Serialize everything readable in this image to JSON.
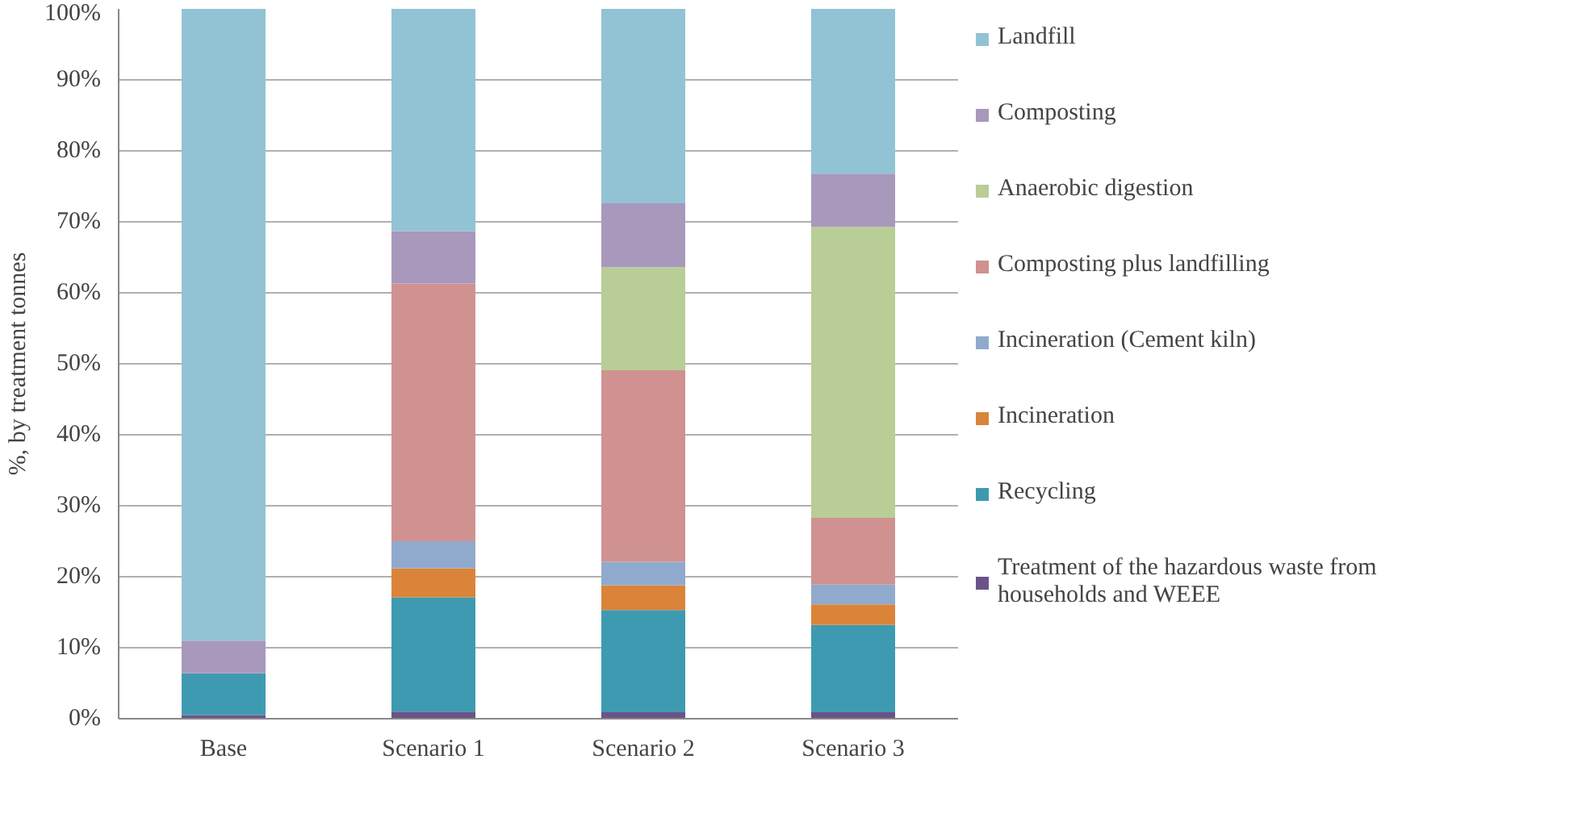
{
  "chart_data": {
    "type": "bar",
    "stacked": true,
    "ylabel": "%, by treatment tonnes",
    "categories": [
      "Base",
      "Scenario 1",
      "Scenario 2",
      "Scenario 3"
    ],
    "series": [
      {
        "name": "Treatment of the hazardous waste from households and WEEE",
        "color": "#6a5388",
        "values": [
          0.5,
          1.0,
          0.9,
          0.9
        ]
      },
      {
        "name": "Recycling",
        "color": "#3e9ab0",
        "values": [
          5.9,
          16.1,
          14.4,
          12.3
        ]
      },
      {
        "name": "Incineration",
        "color": "#da843a",
        "values": [
          0,
          4.1,
          3.5,
          2.9
        ]
      },
      {
        "name": "Incineration (Cement kiln)",
        "color": "#8faacd",
        "values": [
          0,
          3.8,
          3.3,
          2.8
        ]
      },
      {
        "name": "Composting plus landfilling",
        "color": "#cf9291",
        "values": [
          0,
          36.3,
          27.0,
          9.4
        ]
      },
      {
        "name": "Anaerobic digestion",
        "color": "#b9cd96",
        "values": [
          0,
          0,
          14.5,
          41.0
        ]
      },
      {
        "name": "Composting",
        "color": "#a898bc",
        "values": [
          4.6,
          7.4,
          9.0,
          7.5
        ]
      },
      {
        "name": "Landfill",
        "color": "#92c3d4",
        "values": [
          89.0,
          31.3,
          27.4,
          23.2
        ]
      }
    ],
    "ylim": [
      0,
      100
    ],
    "yticks": [
      {
        "value": 0,
        "label": "0%"
      },
      {
        "value": 10,
        "label": "10%"
      },
      {
        "value": 20,
        "label": "20%"
      },
      {
        "value": 30,
        "label": "30%"
      },
      {
        "value": 40,
        "label": "40%"
      },
      {
        "value": 50,
        "label": "50%"
      },
      {
        "value": 60,
        "label": "60%"
      },
      {
        "value": 70,
        "label": "70%"
      },
      {
        "value": 80,
        "label": "80%"
      },
      {
        "value": 90,
        "label": "90%"
      },
      {
        "value": 100,
        "label": "100%"
      }
    ],
    "grid": "y",
    "legend": "right"
  }
}
